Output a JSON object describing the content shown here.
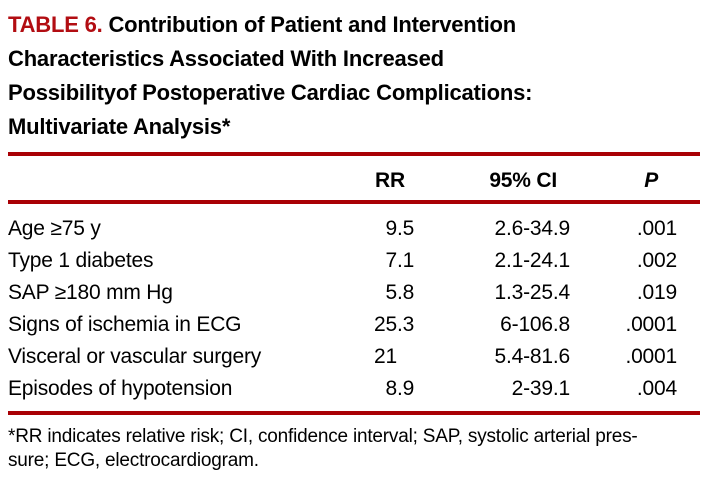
{
  "title": {
    "label": "TABLE 6.",
    "line1": "Contribution of Patient and Intervention",
    "line2": "Characteristics Associated With Increased",
    "line3": "Possibilityof Postoperative Cardiac Complications:",
    "line4": "Multivariate Analysis*"
  },
  "colors": {
    "accent_red_text": "#b20d12",
    "rule_red": "#a90005",
    "text": "#000000",
    "background": "#ffffff"
  },
  "table": {
    "headers": {
      "rr": "RR",
      "ci": "95% CI",
      "p": "P"
    },
    "rows": [
      {
        "label": "Age ≥75 y",
        "rr": "9.5",
        "ci": "2.6-34.9",
        "p": ".001"
      },
      {
        "label": "Type 1 diabetes",
        "rr": "7.1",
        "ci": "2.1-24.1",
        "p": ".002"
      },
      {
        "label": "SAP ≥180 mm Hg",
        "rr": "5.8",
        "ci": "1.3-25.4",
        "p": ".019"
      },
      {
        "label": "Signs of ischemia in ECG",
        "rr": "25.3",
        "ci": "6-106.8",
        "p": ".0001"
      },
      {
        "label": "Visceral or vascular surgery",
        "rr": "21",
        "ci": "5.4-81.6",
        "p": ".0001"
      },
      {
        "label": "Episodes of hypotension",
        "rr": "8.9",
        "ci": "2-39.1",
        "p": ".004"
      }
    ]
  },
  "footnote": {
    "line1": "*RR indicates relative risk; CI, confidence interval; SAP, systolic arterial pres-",
    "line2": "sure; ECG, electrocardiogram."
  }
}
